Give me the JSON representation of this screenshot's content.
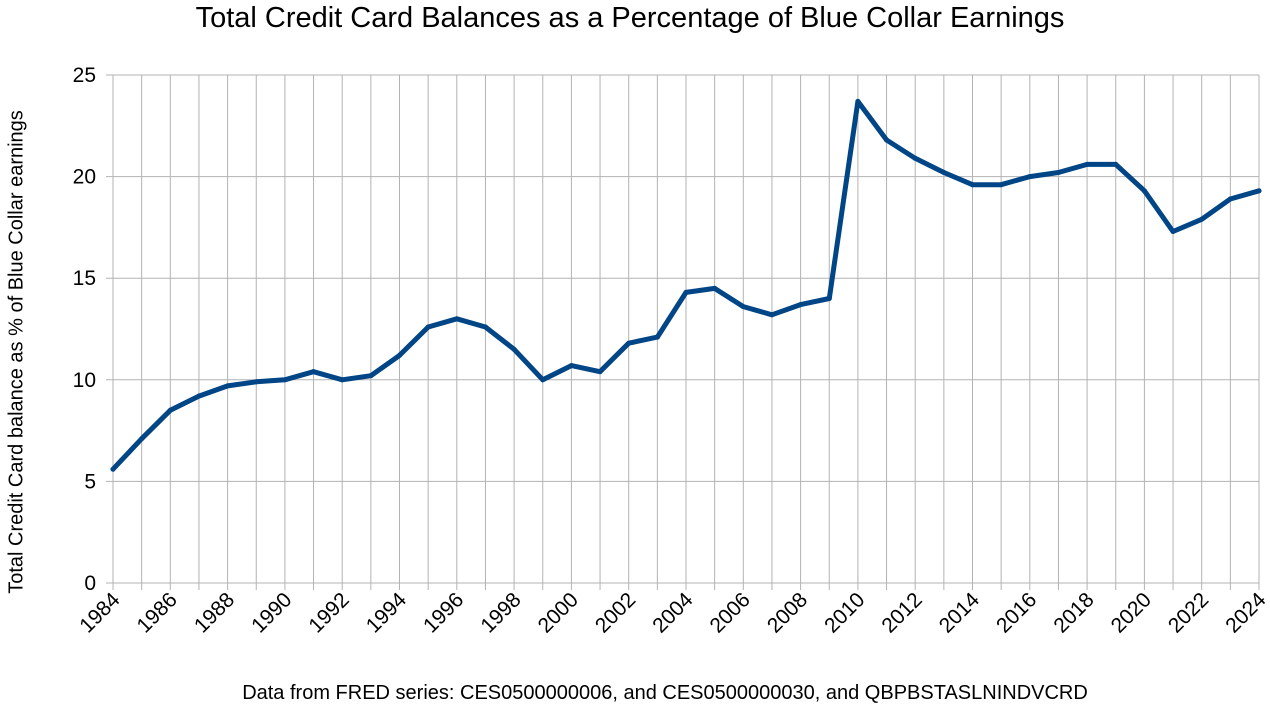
{
  "chart_data": {
    "type": "line",
    "title": "Total Credit Card Balances as a Percentage of Blue Collar Earnings",
    "ylabel": "Total Credit Card balance as % of Blue Collar earnings",
    "footnote": "Data from FRED series: CES0500000006, and CES0500000030, and QBPBSTASLNINDVCRD",
    "x": [
      1984,
      1985,
      1986,
      1987,
      1988,
      1989,
      1990,
      1991,
      1992,
      1993,
      1994,
      1995,
      1996,
      1997,
      1998,
      1999,
      2000,
      2001,
      2002,
      2003,
      2004,
      2005,
      2006,
      2007,
      2008,
      2009,
      2010,
      2011,
      2012,
      2013,
      2014,
      2015,
      2016,
      2017,
      2018,
      2019,
      2020,
      2021,
      2022,
      2023,
      2024
    ],
    "series": [
      {
        "color": "#004586",
        "values": [
          5.6,
          7.1,
          8.5,
          9.2,
          9.7,
          9.9,
          10.0,
          10.4,
          10.0,
          10.2,
          11.2,
          12.6,
          13.0,
          12.6,
          11.5,
          10.0,
          10.7,
          10.4,
          11.8,
          12.1,
          14.3,
          14.5,
          13.6,
          13.2,
          13.7,
          14.0,
          23.7,
          21.8,
          20.9,
          20.2,
          19.6,
          19.6,
          20.0,
          20.2,
          20.6,
          20.6,
          19.3,
          17.3,
          17.9,
          18.9,
          19.3
        ]
      }
    ],
    "xlim": [
      1984,
      2024
    ],
    "ylim": [
      0,
      25
    ],
    "yticks": [
      0,
      5,
      10,
      15,
      20,
      25
    ],
    "xticks": [
      1984,
      1986,
      1988,
      1990,
      1992,
      1994,
      1996,
      1998,
      2000,
      2002,
      2004,
      2006,
      2008,
      2010,
      2012,
      2014,
      2016,
      2018,
      2020,
      2022,
      2024
    ],
    "grid": true,
    "legend": "none"
  }
}
